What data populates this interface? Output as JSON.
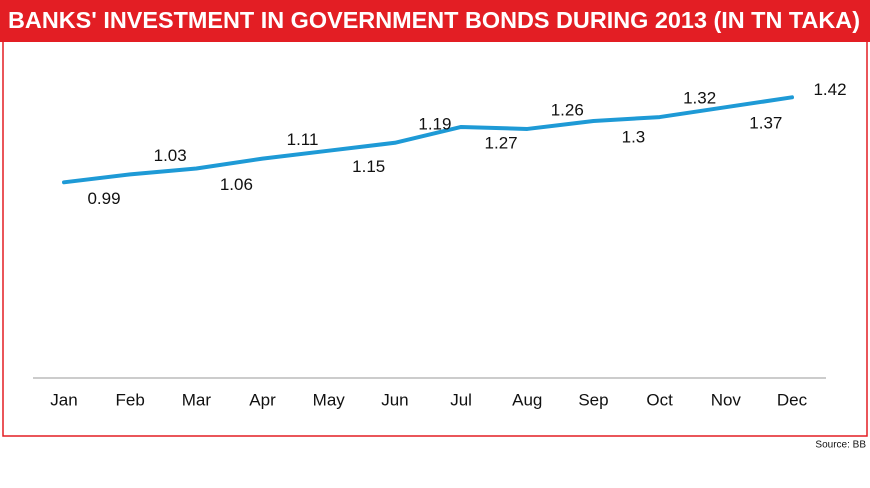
{
  "chart_data": {
    "type": "line",
    "title": "BANKS' INVESTMENT IN GOVERNMENT BONDS DURING 2013 (IN TN TAKA)",
    "source": "Source: BB",
    "categories": [
      "Jan",
      "Feb",
      "Mar",
      "Apr",
      "May",
      "Jun",
      "Jul",
      "Aug",
      "Sep",
      "Oct",
      "Nov",
      "Dec"
    ],
    "values": [
      0.99,
      1.03,
      1.06,
      1.11,
      1.15,
      1.19,
      1.27,
      1.26,
      1.3,
      1.32,
      1.37,
      1.42
    ],
    "color": "#1e9ad6",
    "ylim": [
      0,
      1.5
    ]
  }
}
